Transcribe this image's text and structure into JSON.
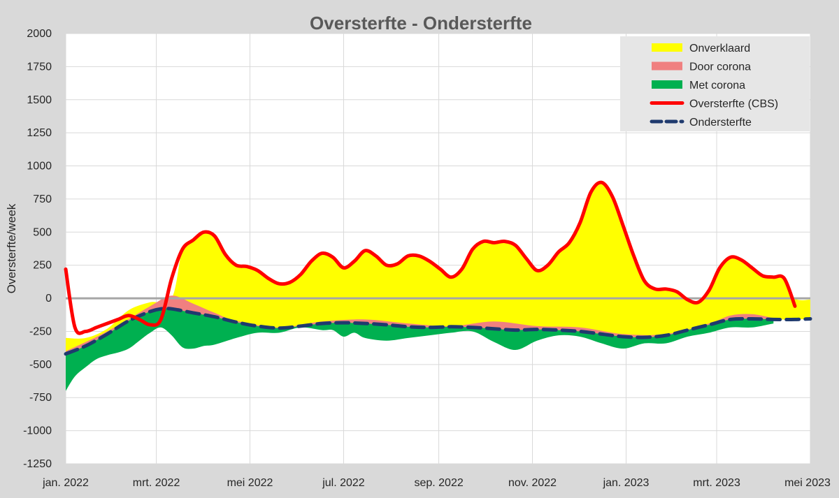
{
  "chart_data": {
    "type": "area",
    "title": "Oversterfte - Ondersterfte",
    "xlabel": "",
    "ylabel": "Oversterfte/week",
    "ylim": [
      -1250,
      2000
    ],
    "xlim": [
      "2022-01-01",
      "2023-05-01"
    ],
    "y_ticks": [
      2000,
      1750,
      1500,
      1250,
      1000,
      750,
      500,
      250,
      0,
      -250,
      -500,
      -750,
      -1000,
      -1250
    ],
    "x_ticks": [
      {
        "date": "2022-01-01",
        "label": "jan. 2022"
      },
      {
        "date": "2022-03-01",
        "label": "mrt. 2022"
      },
      {
        "date": "2022-05-01",
        "label": "mei 2022"
      },
      {
        "date": "2022-07-01",
        "label": "jul. 2022"
      },
      {
        "date": "2022-09-01",
        "label": "sep. 2022"
      },
      {
        "date": "2022-11-01",
        "label": "nov. 2022"
      },
      {
        "date": "2023-01-01",
        "label": "jan. 2023"
      },
      {
        "date": "2023-03-01",
        "label": "mrt. 2023"
      },
      {
        "date": "2023-05-01",
        "label": "mei 2023"
      }
    ],
    "grid": true,
    "legend_position": "top-right",
    "legend": [
      {
        "name": "Onverklaard",
        "kind": "fill",
        "color": "#ffff00"
      },
      {
        "name": "Door corona",
        "kind": "fill",
        "color": "#f08080"
      },
      {
        "name": "Met corona",
        "kind": "fill",
        "color": "#00b050"
      },
      {
        "name": "Oversterfte (CBS)",
        "kind": "line",
        "color": "#ff0000"
      },
      {
        "name": "Ondersterfte",
        "kind": "dash",
        "color": "#1f3a6e"
      }
    ],
    "series": [
      {
        "name": "Oversterfte (CBS)",
        "color": "#ff0000",
        "points": [
          [
            "2022-01-01",
            220
          ],
          [
            "2022-01-07",
            -220
          ],
          [
            "2022-01-14",
            -250
          ],
          [
            "2022-01-21",
            -220
          ],
          [
            "2022-01-28",
            -190
          ],
          [
            "2022-02-04",
            -160
          ],
          [
            "2022-02-11",
            -130
          ],
          [
            "2022-02-18",
            -160
          ],
          [
            "2022-02-25",
            -200
          ],
          [
            "2022-03-04",
            -160
          ],
          [
            "2022-03-11",
            150
          ],
          [
            "2022-03-18",
            370
          ],
          [
            "2022-03-25",
            440
          ],
          [
            "2022-04-01",
            500
          ],
          [
            "2022-04-08",
            470
          ],
          [
            "2022-04-15",
            330
          ],
          [
            "2022-04-22",
            250
          ],
          [
            "2022-04-29",
            240
          ],
          [
            "2022-05-06",
            210
          ],
          [
            "2022-05-13",
            150
          ],
          [
            "2022-05-20",
            110
          ],
          [
            "2022-05-27",
            120
          ],
          [
            "2022-06-03",
            180
          ],
          [
            "2022-06-10",
            280
          ],
          [
            "2022-06-17",
            340
          ],
          [
            "2022-06-24",
            310
          ],
          [
            "2022-07-01",
            230
          ],
          [
            "2022-07-08",
            280
          ],
          [
            "2022-07-15",
            360
          ],
          [
            "2022-07-22",
            320
          ],
          [
            "2022-07-29",
            250
          ],
          [
            "2022-08-05",
            260
          ],
          [
            "2022-08-12",
            320
          ],
          [
            "2022-08-19",
            320
          ],
          [
            "2022-08-26",
            280
          ],
          [
            "2022-09-02",
            220
          ],
          [
            "2022-09-09",
            160
          ],
          [
            "2022-09-16",
            220
          ],
          [
            "2022-09-23",
            370
          ],
          [
            "2022-09-30",
            430
          ],
          [
            "2022-10-07",
            420
          ],
          [
            "2022-10-14",
            430
          ],
          [
            "2022-10-21",
            400
          ],
          [
            "2022-10-28",
            300
          ],
          [
            "2022-11-04",
            210
          ],
          [
            "2022-11-11",
            250
          ],
          [
            "2022-11-18",
            350
          ],
          [
            "2022-11-25",
            420
          ],
          [
            "2022-12-02",
            570
          ],
          [
            "2022-12-09",
            800
          ],
          [
            "2022-12-16",
            875
          ],
          [
            "2022-12-23",
            770
          ],
          [
            "2022-12-30",
            550
          ],
          [
            "2023-01-06",
            320
          ],
          [
            "2023-01-13",
            130
          ],
          [
            "2023-01-20",
            70
          ],
          [
            "2023-01-27",
            70
          ],
          [
            "2023-02-03",
            50
          ],
          [
            "2023-02-10",
            -10
          ],
          [
            "2023-02-17",
            -30
          ],
          [
            "2023-02-24",
            60
          ],
          [
            "2023-03-03",
            230
          ],
          [
            "2023-03-10",
            310
          ],
          [
            "2023-03-17",
            290
          ],
          [
            "2023-03-24",
            230
          ],
          [
            "2023-03-31",
            170
          ],
          [
            "2023-04-07",
            160
          ],
          [
            "2023-04-14",
            150
          ],
          [
            "2023-04-21",
            -60
          ]
        ]
      },
      {
        "name": "Ondersterfte",
        "color": "#1f3a6e",
        "points": [
          [
            "2022-01-01",
            -420
          ],
          [
            "2022-01-14",
            -360
          ],
          [
            "2022-01-28",
            -270
          ],
          [
            "2022-02-11",
            -170
          ],
          [
            "2022-02-25",
            -100
          ],
          [
            "2022-03-04",
            -80
          ],
          [
            "2022-03-11",
            -80
          ],
          [
            "2022-03-25",
            -110
          ],
          [
            "2022-04-08",
            -140
          ],
          [
            "2022-04-22",
            -180
          ],
          [
            "2022-05-06",
            -210
          ],
          [
            "2022-05-20",
            -225
          ],
          [
            "2022-06-03",
            -210
          ],
          [
            "2022-06-17",
            -190
          ],
          [
            "2022-07-01",
            -185
          ],
          [
            "2022-07-15",
            -190
          ],
          [
            "2022-07-29",
            -200
          ],
          [
            "2022-08-12",
            -215
          ],
          [
            "2022-08-26",
            -220
          ],
          [
            "2022-09-09",
            -215
          ],
          [
            "2022-09-23",
            -220
          ],
          [
            "2022-10-07",
            -230
          ],
          [
            "2022-10-21",
            -240
          ],
          [
            "2022-11-04",
            -235
          ],
          [
            "2022-11-18",
            -240
          ],
          [
            "2022-12-02",
            -250
          ],
          [
            "2022-12-16",
            -270
          ],
          [
            "2022-12-30",
            -290
          ],
          [
            "2023-01-13",
            -295
          ],
          [
            "2023-01-27",
            -280
          ],
          [
            "2023-02-10",
            -240
          ],
          [
            "2023-02-24",
            -200
          ],
          [
            "2023-03-10",
            -160
          ],
          [
            "2023-03-24",
            -155
          ],
          [
            "2023-04-07",
            -160
          ],
          [
            "2023-04-21",
            -160
          ],
          [
            "2023-05-01",
            -155
          ]
        ]
      },
      {
        "name": "Onverklaard",
        "color": "#ffff00",
        "points": [
          [
            "2022-01-01",
            -300
          ],
          [
            "2022-01-14",
            -300
          ],
          [
            "2022-01-28",
            -230
          ],
          [
            "2022-02-11",
            -90
          ],
          [
            "2022-02-25",
            -30
          ],
          [
            "2022-03-11",
            0
          ],
          [
            "2022-03-18",
            370
          ],
          [
            "2022-03-25",
            440
          ],
          [
            "2022-04-01",
            500
          ],
          [
            "2022-04-08",
            470
          ],
          [
            "2022-04-15",
            330
          ],
          [
            "2022-04-22",
            250
          ],
          [
            "2022-04-29",
            240
          ],
          [
            "2022-05-06",
            210
          ],
          [
            "2022-05-13",
            150
          ],
          [
            "2022-05-20",
            110
          ],
          [
            "2022-05-27",
            120
          ],
          [
            "2022-06-03",
            180
          ],
          [
            "2022-06-10",
            280
          ],
          [
            "2022-06-17",
            340
          ],
          [
            "2022-06-24",
            310
          ],
          [
            "2022-07-01",
            230
          ],
          [
            "2022-07-08",
            280
          ],
          [
            "2022-07-15",
            360
          ],
          [
            "2022-07-22",
            320
          ],
          [
            "2022-07-29",
            250
          ],
          [
            "2022-08-05",
            260
          ],
          [
            "2022-08-12",
            320
          ],
          [
            "2022-08-19",
            320
          ],
          [
            "2022-08-26",
            280
          ],
          [
            "2022-09-02",
            220
          ],
          [
            "2022-09-09",
            160
          ],
          [
            "2022-09-16",
            220
          ],
          [
            "2022-09-23",
            370
          ],
          [
            "2022-09-30",
            430
          ],
          [
            "2022-10-07",
            420
          ],
          [
            "2022-10-14",
            430
          ],
          [
            "2022-10-21",
            400
          ],
          [
            "2022-10-28",
            300
          ],
          [
            "2022-11-04",
            210
          ],
          [
            "2022-11-11",
            250
          ],
          [
            "2022-11-18",
            350
          ],
          [
            "2022-11-25",
            420
          ],
          [
            "2022-12-02",
            570
          ],
          [
            "2022-12-09",
            800
          ],
          [
            "2022-12-16",
            875
          ],
          [
            "2022-12-23",
            770
          ],
          [
            "2022-12-30",
            550
          ],
          [
            "2023-01-06",
            320
          ],
          [
            "2023-01-13",
            130
          ],
          [
            "2023-01-20",
            70
          ],
          [
            "2023-01-27",
            70
          ],
          [
            "2023-02-03",
            50
          ],
          [
            "2023-02-10",
            -10
          ],
          [
            "2023-02-17",
            -30
          ],
          [
            "2023-02-24",
            60
          ],
          [
            "2023-03-03",
            230
          ],
          [
            "2023-03-10",
            310
          ],
          [
            "2023-03-17",
            290
          ],
          [
            "2023-03-24",
            230
          ],
          [
            "2023-03-31",
            170
          ],
          [
            "2023-04-07",
            160
          ],
          [
            "2023-04-14",
            150
          ],
          [
            "2023-04-21",
            0
          ],
          [
            "2023-05-01",
            -10
          ]
        ]
      },
      {
        "name": "Door corona",
        "color": "#f08080",
        "points": [
          [
            "2022-01-01",
            -400
          ],
          [
            "2022-01-28",
            -250
          ],
          [
            "2022-02-25",
            -60
          ],
          [
            "2022-03-11",
            20
          ],
          [
            "2022-03-25",
            -40
          ],
          [
            "2022-04-08",
            -110
          ],
          [
            "2022-04-22",
            -170
          ],
          [
            "2022-05-20",
            -220
          ],
          [
            "2022-06-17",
            -175
          ],
          [
            "2022-07-15",
            -160
          ],
          [
            "2022-08-12",
            -190
          ],
          [
            "2022-09-09",
            -210
          ],
          [
            "2022-10-07",
            -175
          ],
          [
            "2022-11-04",
            -210
          ],
          [
            "2022-12-02",
            -220
          ],
          [
            "2022-12-30",
            -270
          ],
          [
            "2023-01-27",
            -270
          ],
          [
            "2023-02-24",
            -190
          ],
          [
            "2023-03-10",
            -130
          ],
          [
            "2023-03-24",
            -120
          ],
          [
            "2023-04-07",
            -150
          ]
        ]
      },
      {
        "name": "Met corona",
        "color": "#00b050",
        "points": [
          [
            "2022-01-01",
            -700
          ],
          [
            "2022-01-07",
            -590
          ],
          [
            "2022-01-14",
            -520
          ],
          [
            "2022-01-21",
            -460
          ],
          [
            "2022-01-28",
            -430
          ],
          [
            "2022-02-04",
            -410
          ],
          [
            "2022-02-11",
            -380
          ],
          [
            "2022-02-18",
            -320
          ],
          [
            "2022-02-25",
            -260
          ],
          [
            "2022-03-04",
            -220
          ],
          [
            "2022-03-11",
            -280
          ],
          [
            "2022-03-18",
            -370
          ],
          [
            "2022-03-25",
            -380
          ],
          [
            "2022-04-01",
            -360
          ],
          [
            "2022-04-08",
            -350
          ],
          [
            "2022-04-22",
            -300
          ],
          [
            "2022-05-06",
            -260
          ],
          [
            "2022-05-20",
            -260
          ],
          [
            "2022-06-03",
            -220
          ],
          [
            "2022-06-17",
            -240
          ],
          [
            "2022-06-24",
            -240
          ],
          [
            "2022-07-01",
            -290
          ],
          [
            "2022-07-08",
            -260
          ],
          [
            "2022-07-15",
            -300
          ],
          [
            "2022-07-29",
            -320
          ],
          [
            "2022-08-12",
            -300
          ],
          [
            "2022-08-26",
            -280
          ],
          [
            "2022-09-09",
            -260
          ],
          [
            "2022-09-23",
            -250
          ],
          [
            "2022-10-07",
            -330
          ],
          [
            "2022-10-21",
            -390
          ],
          [
            "2022-11-04",
            -320
          ],
          [
            "2022-11-18",
            -280
          ],
          [
            "2022-12-02",
            -290
          ],
          [
            "2022-12-16",
            -340
          ],
          [
            "2022-12-30",
            -380
          ],
          [
            "2023-01-13",
            -340
          ],
          [
            "2023-01-27",
            -340
          ],
          [
            "2023-02-10",
            -290
          ],
          [
            "2023-02-24",
            -260
          ],
          [
            "2023-03-10",
            -220
          ],
          [
            "2023-03-24",
            -220
          ],
          [
            "2023-04-07",
            -190
          ]
        ]
      }
    ]
  }
}
